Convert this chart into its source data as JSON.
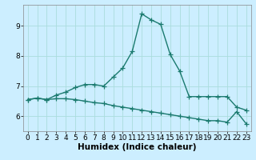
{
  "title": "",
  "xlabel": "Humidex (Indice chaleur)",
  "bg_color": "#cceeff",
  "grid_color": "#aadddd",
  "line_color": "#1a7a6e",
  "xlim": [
    -0.5,
    23.5
  ],
  "ylim": [
    5.5,
    9.7
  ],
  "yticks": [
    6,
    7,
    8,
    9
  ],
  "xticks": [
    0,
    1,
    2,
    3,
    4,
    5,
    6,
    7,
    8,
    9,
    10,
    11,
    12,
    13,
    14,
    15,
    16,
    17,
    18,
    19,
    20,
    21,
    22,
    23
  ],
  "line1_x": [
    0,
    1,
    2,
    3,
    4,
    5,
    6,
    7,
    8,
    9,
    10,
    11,
    12,
    13,
    14,
    15,
    16,
    17,
    18,
    19,
    20,
    21,
    22,
    23
  ],
  "line1_y": [
    6.55,
    6.6,
    6.55,
    6.7,
    6.8,
    6.95,
    7.05,
    7.05,
    7.0,
    7.3,
    7.6,
    8.15,
    9.4,
    9.2,
    9.05,
    8.05,
    7.5,
    6.65,
    6.65,
    6.65,
    6.65,
    6.65,
    6.3,
    6.2
  ],
  "line2_x": [
    0,
    1,
    2,
    3,
    4,
    5,
    6,
    7,
    8,
    9,
    10,
    11,
    12,
    13,
    14,
    15,
    16,
    17,
    18,
    19,
    20,
    21,
    22,
    23
  ],
  "line2_y": [
    6.55,
    6.6,
    6.55,
    6.58,
    6.58,
    6.55,
    6.5,
    6.45,
    6.42,
    6.35,
    6.3,
    6.25,
    6.2,
    6.15,
    6.1,
    6.05,
    6.0,
    5.95,
    5.9,
    5.85,
    5.85,
    5.8,
    6.15,
    5.75
  ],
  "marker": "+",
  "markersize": 4,
  "linewidth": 1.0,
  "tick_fontsize": 6.5,
  "label_fontsize": 7.5
}
